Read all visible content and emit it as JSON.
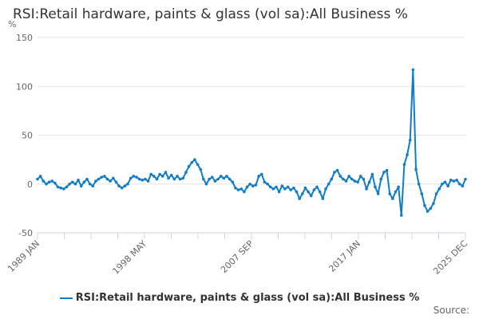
{
  "chart_data": {
    "type": "line",
    "title": "RSI:Retail hardware, paints & glass (vol sa):All Business %",
    "ylabel": "%",
    "xlabel": "",
    "ylim": [
      -50,
      150
    ],
    "yticks": [
      150,
      100,
      50,
      0,
      -50
    ],
    "xticks": [
      "1989 JAN",
      "1998 MAY",
      "2007 SEP",
      "2017 JAN",
      "2025 DEC"
    ],
    "x_start": "1989 JAN",
    "x_end": "2025 DEC",
    "frequency": "quarterly (approximate reading)",
    "grid": true,
    "legend": "bottom",
    "series": [
      {
        "name": "RSI:Retail hardware, paints & glass (vol sa):All Business %",
        "color": "#0f7dc8",
        "values": [
          5,
          8,
          3,
          0,
          2,
          3,
          1,
          -3,
          -4,
          -5,
          -3,
          0,
          2,
          0,
          4,
          -2,
          2,
          5,
          0,
          -2,
          3,
          5,
          7,
          8,
          5,
          3,
          6,
          2,
          -2,
          -4,
          -2,
          0,
          6,
          8,
          7,
          5,
          4,
          5,
          3,
          10,
          8,
          5,
          10,
          8,
          12,
          6,
          9,
          5,
          8,
          5,
          6,
          12,
          18,
          22,
          25,
          20,
          15,
          5,
          0,
          5,
          7,
          3,
          5,
          8,
          6,
          8,
          5,
          2,
          -4,
          -6,
          -5,
          -8,
          -3,
          0,
          -2,
          -1,
          8,
          10,
          2,
          0,
          -3,
          -5,
          -3,
          -8,
          -2,
          -5,
          -3,
          -6,
          -4,
          -8,
          -15,
          -10,
          -4,
          -8,
          -12,
          -6,
          -3,
          -8,
          -15,
          -5,
          0,
          5,
          12,
          14,
          8,
          5,
          3,
          8,
          5,
          3,
          2,
          8,
          5,
          -5,
          2,
          10,
          -3,
          -10,
          5,
          12,
          14,
          -10,
          -15,
          -8,
          -3,
          -32,
          20,
          30,
          45,
          117,
          15,
          0,
          -10,
          -22,
          -28,
          -25,
          -20,
          -10,
          -5,
          0,
          2,
          -2,
          4,
          3,
          4,
          0,
          -2,
          5
        ]
      }
    ]
  },
  "source_label": "Source:"
}
